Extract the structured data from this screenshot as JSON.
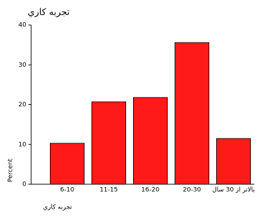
{
  "chart_data": {
    "type": "bar",
    "title": "تجربه کاري",
    "x_label": "تجربه کاري",
    "y_label": "Percent",
    "categories": [
      "6-10",
      "11-15",
      "16-20",
      "20-30",
      "بالاتر از 30 سال"
    ],
    "values": [
      10.3,
      20.7,
      21.8,
      35.6,
      11.5
    ],
    "color": "#ff1a1a",
    "ylim": [
      0,
      40
    ],
    "yticks": [
      0,
      10,
      20,
      30,
      40
    ],
    "grid": false
  }
}
